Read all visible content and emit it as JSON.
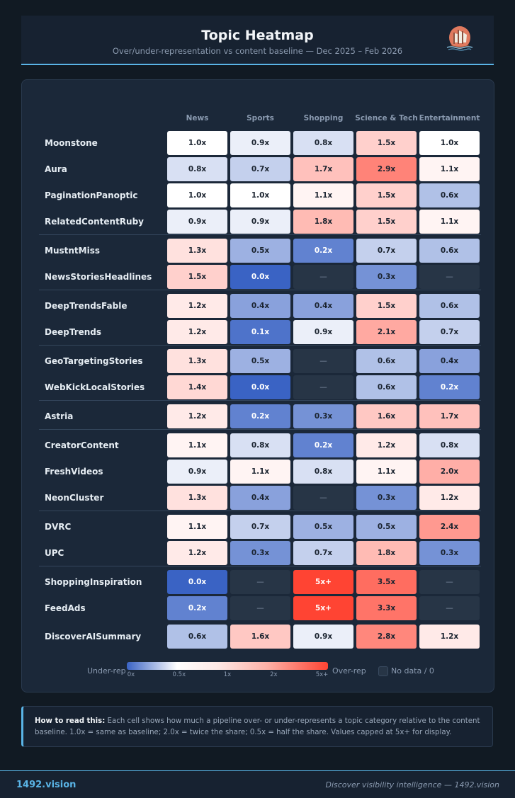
{
  "header": {
    "title": "Topic Heatmap",
    "subtitle": "Over/under-representation vs content baseline — Dec 2025 – Feb 2026",
    "logo_icon": "sailing-ship-logo"
  },
  "chart_data": {
    "type": "heatmap",
    "columns": [
      "News",
      "Sports",
      "Shopping",
      "Science & Tech",
      "Entertainment"
    ],
    "empty_label": "—",
    "groups": [
      [
        {
          "name": "Moonstone",
          "values": [
            "1.0x",
            "0.9x",
            "0.8x",
            "1.5x",
            "1.0x"
          ]
        },
        {
          "name": "Aura",
          "values": [
            "0.8x",
            "0.7x",
            "1.7x",
            "2.9x",
            "1.1x"
          ]
        },
        {
          "name": "PaginationPanoptic",
          "values": [
            "1.0x",
            "1.0x",
            "1.1x",
            "1.5x",
            "0.6x"
          ]
        },
        {
          "name": "RelatedContentRuby",
          "values": [
            "0.9x",
            "0.9x",
            "1.8x",
            "1.5x",
            "1.1x"
          ]
        }
      ],
      [
        {
          "name": "MustntMiss",
          "values": [
            "1.3x",
            "0.5x",
            "0.2x",
            "0.7x",
            "0.6x"
          ]
        },
        {
          "name": "NewsStoriesHeadlines",
          "values": [
            "1.5x",
            "0.0x",
            null,
            "0.3x",
            null
          ]
        }
      ],
      [
        {
          "name": "DeepTrendsFable",
          "values": [
            "1.2x",
            "0.4x",
            "0.4x",
            "1.5x",
            "0.6x"
          ]
        },
        {
          "name": "DeepTrends",
          "values": [
            "1.2x",
            "0.1x",
            "0.9x",
            "2.1x",
            "0.7x"
          ]
        }
      ],
      [
        {
          "name": "GeoTargetingStories",
          "values": [
            "1.3x",
            "0.5x",
            null,
            "0.6x",
            "0.4x"
          ]
        },
        {
          "name": "WebKickLocalStories",
          "values": [
            "1.4x",
            "0.0x",
            null,
            "0.6x",
            "0.2x"
          ]
        }
      ],
      [
        {
          "name": "Astria",
          "values": [
            "1.2x",
            "0.2x",
            "0.3x",
            "1.6x",
            "1.7x"
          ]
        }
      ],
      [
        {
          "name": "CreatorContent",
          "values": [
            "1.1x",
            "0.8x",
            "0.2x",
            "1.2x",
            "0.8x"
          ]
        },
        {
          "name": "FreshVideos",
          "values": [
            "0.9x",
            "1.1x",
            "0.8x",
            "1.1x",
            "2.0x"
          ]
        },
        {
          "name": "NeonCluster",
          "values": [
            "1.3x",
            "0.4x",
            null,
            "0.3x",
            "1.2x"
          ]
        }
      ],
      [
        {
          "name": "DVRC",
          "values": [
            "1.1x",
            "0.7x",
            "0.5x",
            "0.5x",
            "2.4x"
          ]
        },
        {
          "name": "UPC",
          "values": [
            "1.2x",
            "0.3x",
            "0.7x",
            "1.8x",
            "0.3x"
          ]
        }
      ],
      [
        {
          "name": "ShoppingInspiration",
          "values": [
            "0.0x",
            null,
            "5x+",
            "3.5x",
            null
          ]
        },
        {
          "name": "FeedAds",
          "values": [
            "0.2x",
            null,
            "5x+",
            "3.3x",
            null
          ]
        }
      ],
      [
        {
          "name": "DiscoverAISummary",
          "values": [
            "0.6x",
            "1.6x",
            "0.9x",
            "2.8x",
            "1.2x"
          ]
        }
      ]
    ],
    "color_scale": {
      "low": "#3a63c4",
      "mid": "#ffffff",
      "high": "#ff4433",
      "empty": "#273546"
    },
    "legend": {
      "under_label": "Under-rep",
      "over_label": "Over-rep",
      "ticks": [
        "0x",
        "0.5x",
        "1x",
        "2x",
        "5x+"
      ],
      "no_data_label": "No data / 0"
    }
  },
  "note": {
    "lead": "How to read this:",
    "text": " Each cell shows how much a pipeline over- or under-represents a topic category relative to the content baseline. 1.0x = same as baseline; 2.0x = twice the share; 0.5x = half the share. Values capped at 5x+ for display."
  },
  "footer": {
    "brand": "1492.vision",
    "tagline": "Discover visibility intelligence — 1492.vision"
  }
}
